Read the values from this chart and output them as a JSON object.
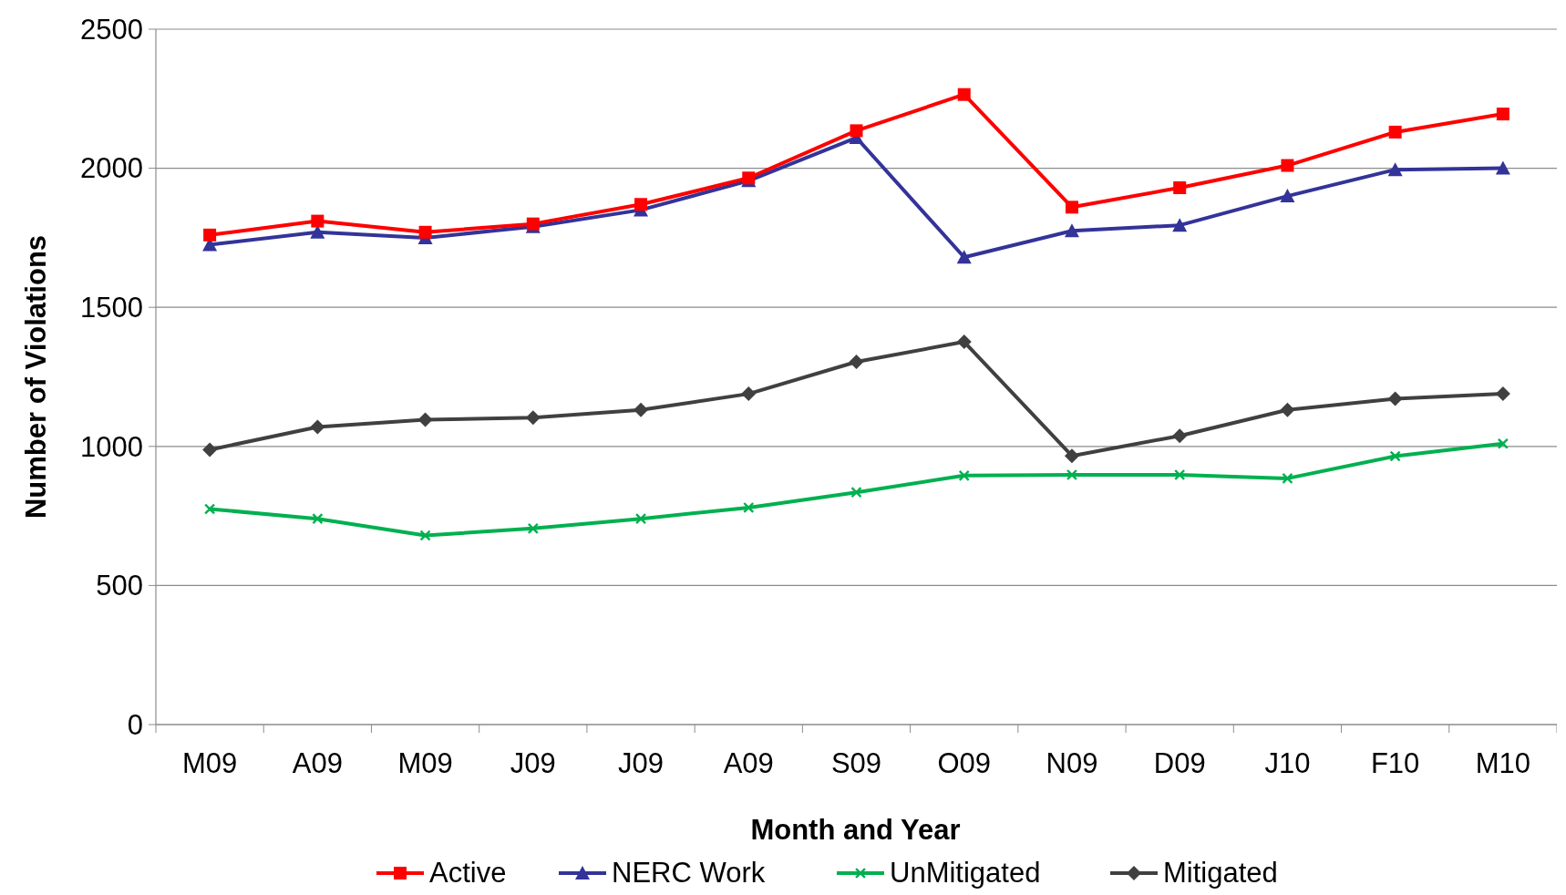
{
  "chart_data": {
    "type": "line",
    "xlabel": "Month and Year",
    "ylabel": "Number of Violations",
    "categories": [
      "M09",
      "A09",
      "M09",
      "J09",
      "J09",
      "A09",
      "S09",
      "O09",
      "N09",
      "D09",
      "J10",
      "F10",
      "M10"
    ],
    "ylim": [
      0,
      2500
    ],
    "yticks": [
      0,
      500,
      1000,
      1500,
      2000,
      2500
    ],
    "grid": "y",
    "legend": "bottom",
    "series": [
      {
        "name": "Active",
        "color": "#ff0000",
        "marker": "square",
        "values": [
          1760,
          1810,
          1770,
          1800,
          1870,
          1965,
          2135,
          2265,
          1860,
          1930,
          2010,
          2130,
          2195
        ]
      },
      {
        "name": "NERC Work",
        "color": "#333399",
        "marker": "triangle",
        "values": [
          1725,
          1770,
          1750,
          1790,
          1850,
          1955,
          2110,
          1680,
          1775,
          1795,
          1900,
          1995,
          2000
        ]
      },
      {
        "name": "UnMitigated",
        "color": "#00b050",
        "marker": "cross",
        "values": [
          775,
          740,
          680,
          705,
          740,
          780,
          835,
          895,
          898,
          898,
          885,
          965,
          1010
        ]
      },
      {
        "name": "Mitigated",
        "color": "#404040",
        "marker": "diamond",
        "values": [
          988,
          1070,
          1096,
          1103,
          1131,
          1189,
          1304,
          1376,
          966,
          1038,
          1131,
          1171,
          1189
        ]
      }
    ]
  }
}
